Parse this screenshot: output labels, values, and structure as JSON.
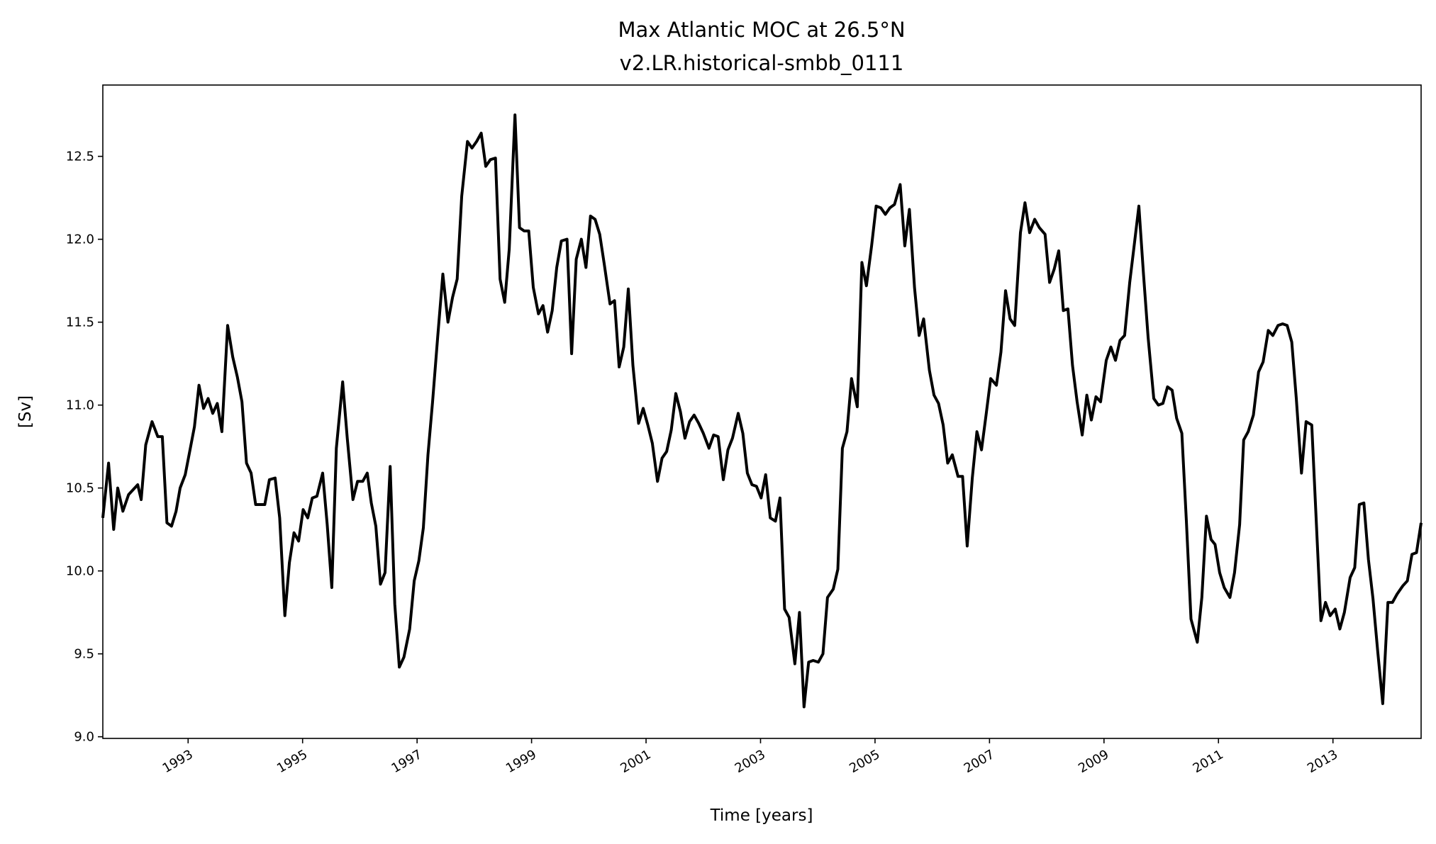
{
  "chart_data": {
    "type": "line",
    "title": "Max Atlantic MOC at 26.5°N",
    "subtitle": "v2.LR.historical-smbb_0111",
    "xlabel": "Time [years]",
    "ylabel": "[Sv]",
    "xlim": [
      1991.51,
      2014.54
    ],
    "ylim": [
      8.99,
      12.93
    ],
    "grid": false,
    "x_ticks": [
      1993,
      1995,
      1997,
      1999,
      2001,
      2003,
      2005,
      2007,
      2009,
      2011,
      2013
    ],
    "x_tick_labels": [
      "1993",
      "1995",
      "1997",
      "1999",
      "2001",
      "2003",
      "2005",
      "2007",
      "2009",
      "2011",
      "2013"
    ],
    "y_ticks": [
      9.0,
      9.5,
      10.0,
      10.5,
      11.0,
      11.5,
      12.0,
      12.5
    ],
    "y_tick_labels": [
      "9.0",
      "9.5",
      "10.0",
      "10.5",
      "11.0",
      "11.5",
      "12.0",
      "12.5"
    ],
    "line_color": "#000000",
    "series": [
      {
        "name": "Max Atlantic MOC",
        "x": [
          1991.51,
          1991.61,
          1991.7,
          1991.77,
          1991.86,
          1991.96,
          1992.12,
          1992.18,
          1992.26,
          1992.37,
          1992.47,
          1992.55,
          1992.63,
          1992.71,
          1992.79,
          1992.86,
          1992.95,
          1993.05,
          1993.11,
          1993.19,
          1993.27,
          1993.35,
          1993.43,
          1993.51,
          1993.59,
          1993.69,
          1993.78,
          1993.86,
          1993.94,
          1994.02,
          1994.1,
          1994.18,
          1994.34,
          1994.42,
          1994.52,
          1994.6,
          1994.69,
          1994.77,
          1994.85,
          1994.93,
          1995.01,
          1995.09,
          1995.17,
          1995.25,
          1995.35,
          1995.43,
          1995.51,
          1995.59,
          1995.7,
          1995.78,
          1995.88,
          1995.96,
          1996.05,
          1996.13,
          1996.2,
          1996.28,
          1996.36,
          1996.44,
          1996.53,
          1996.61,
          1996.69,
          1996.77,
          1996.87,
          1996.95,
          1997.03,
          1997.11,
          1997.19,
          1997.27,
          1997.36,
          1997.45,
          1997.54,
          1997.62,
          1997.7,
          1997.78,
          1997.88,
          1997.96,
          1998.04,
          1998.12,
          1998.2,
          1998.28,
          1998.37,
          1998.45,
          1998.53,
          1998.61,
          1998.71,
          1998.79,
          1998.87,
          1998.95,
          1999.03,
          1999.12,
          1999.2,
          1999.28,
          1999.36,
          1999.44,
          1999.52,
          1999.62,
          1999.7,
          1999.78,
          1999.87,
          1999.95,
          2000.03,
          2000.11,
          2000.19,
          2000.27,
          2000.37,
          2000.45,
          2000.53,
          2000.61,
          2000.69,
          2000.77,
          2000.87,
          2000.95,
          2001.03,
          2001.11,
          2001.2,
          2001.28,
          2001.36,
          2001.44,
          2001.52,
          2001.6,
          2001.68,
          2001.76,
          2001.84,
          2001.92,
          2002.0,
          2002.1,
          2002.18,
          2002.26,
          2002.35,
          2002.43,
          2002.51,
          2002.61,
          2002.69,
          2002.77,
          2002.85,
          2002.93,
          2003.01,
          2003.09,
          2003.17,
          2003.26,
          2003.34,
          2003.42,
          2003.5,
          2003.6,
          2003.68,
          2003.76,
          2003.84,
          2003.92,
          2004.01,
          2004.09,
          2004.17,
          2004.27,
          2004.35,
          2004.43,
          2004.51,
          2004.59,
          2004.69,
          2004.77,
          2004.85,
          2004.94,
          2005.02,
          2005.1,
          2005.18,
          2005.26,
          2005.34,
          2005.44,
          2005.52,
          2005.6,
          2005.69,
          2005.77,
          2005.85,
          2005.95,
          2006.03,
          2006.11,
          2006.19,
          2006.27,
          2006.35,
          2006.45,
          2006.53,
          2006.61,
          2006.7,
          2006.78,
          2006.86,
          2006.94,
          2007.02,
          2007.12,
          2007.2,
          2007.28,
          2007.36,
          2007.44,
          2007.54,
          2007.62,
          2007.7,
          2007.79,
          2007.87,
          2007.97,
          2008.05,
          2008.13,
          2008.21,
          2008.29,
          2008.37,
          2008.45,
          2008.53,
          2008.62,
          2008.7,
          2008.78,
          2008.86,
          2008.94,
          2009.04,
          2009.12,
          2009.2,
          2009.28,
          2009.36,
          2009.45,
          2009.53,
          2009.61,
          2009.69,
          2009.77,
          2009.87,
          2009.95,
          2010.03,
          2010.11,
          2010.19,
          2010.27,
          2010.36,
          2010.44,
          2010.52,
          2010.63,
          2010.71,
          2010.79,
          2010.87,
          2010.94,
          2011.02,
          2011.1,
          2011.2,
          2011.28,
          2011.37,
          2011.44,
          2011.52,
          2011.61,
          2011.7,
          2011.78,
          2011.87,
          2011.95,
          2012.04,
          2012.12,
          2012.2,
          2012.28,
          2012.36,
          2012.45,
          2012.53,
          2012.63,
          2012.7,
          2012.79,
          2012.87,
          2012.95,
          2013.04,
          2013.12,
          2013.2,
          2013.3,
          2013.38,
          2013.46,
          2013.54,
          2013.62,
          2013.7,
          2013.78,
          2013.87,
          2013.96,
          2014.04,
          2014.12,
          2014.22,
          2014.3,
          2014.38,
          2014.46,
          2014.54
        ],
        "y": [
          10.32,
          10.65,
          10.25,
          10.5,
          10.36,
          10.46,
          10.52,
          10.43,
          10.76,
          10.9,
          10.81,
          10.81,
          10.29,
          10.27,
          10.36,
          10.5,
          10.58,
          10.76,
          10.87,
          11.12,
          10.98,
          11.04,
          10.95,
          11.01,
          10.84,
          11.48,
          11.29,
          11.17,
          11.02,
          10.65,
          10.59,
          10.4,
          10.4,
          10.55,
          10.56,
          10.32,
          9.73,
          10.05,
          10.23,
          10.18,
          10.37,
          10.32,
          10.44,
          10.45,
          10.59,
          10.28,
          9.9,
          10.74,
          11.14,
          10.8,
          10.43,
          10.54,
          10.54,
          10.59,
          10.41,
          10.27,
          9.92,
          9.99,
          10.63,
          9.8,
          9.42,
          9.48,
          9.65,
          9.94,
          10.06,
          10.26,
          10.7,
          11.02,
          11.41,
          11.79,
          11.5,
          11.65,
          11.76,
          12.26,
          12.59,
          12.55,
          12.59,
          12.64,
          12.44,
          12.48,
          12.49,
          11.76,
          11.62,
          11.94,
          12.75,
          12.07,
          12.05,
          12.05,
          11.71,
          11.55,
          11.6,
          11.44,
          11.57,
          11.83,
          11.99,
          12.0,
          11.31,
          11.88,
          12.0,
          11.83,
          12.14,
          12.12,
          12.03,
          11.85,
          11.61,
          11.63,
          11.23,
          11.35,
          11.7,
          11.24,
          10.89,
          10.98,
          10.88,
          10.77,
          10.54,
          10.68,
          10.72,
          10.85,
          11.07,
          10.96,
          10.8,
          10.9,
          10.94,
          10.89,
          10.83,
          10.74,
          10.82,
          10.81,
          10.55,
          10.73,
          10.8,
          10.95,
          10.83,
          10.59,
          10.52,
          10.51,
          10.44,
          10.58,
          10.32,
          10.3,
          10.44,
          9.77,
          9.72,
          9.44,
          9.75,
          9.18,
          9.45,
          9.46,
          9.45,
          9.5,
          9.84,
          9.89,
          10.01,
          10.74,
          10.84,
          11.16,
          10.99,
          11.86,
          11.72,
          11.96,
          12.2,
          12.19,
          12.15,
          12.19,
          12.21,
          12.33,
          11.96,
          12.18,
          11.71,
          11.42,
          11.52,
          11.21,
          11.06,
          11.01,
          10.88,
          10.65,
          10.7,
          10.57,
          10.57,
          10.15,
          10.56,
          10.84,
          10.73,
          10.94,
          11.16,
          11.12,
          11.32,
          11.69,
          11.52,
          11.48,
          12.04,
          12.22,
          12.04,
          12.12,
          12.07,
          12.03,
          11.74,
          11.82,
          11.93,
          11.57,
          11.58,
          11.24,
          11.02,
          10.82,
          11.06,
          10.91,
          11.05,
          11.02,
          11.27,
          11.35,
          11.27,
          11.39,
          11.42,
          11.74,
          11.97,
          12.2,
          11.79,
          11.41,
          11.04,
          11.0,
          11.01,
          11.11,
          11.09,
          10.92,
          10.83,
          10.3,
          9.71,
          9.57,
          9.84,
          10.33,
          10.19,
          10.16,
          9.99,
          9.9,
          9.84,
          9.99,
          10.28,
          10.79,
          10.84,
          10.94,
          11.2,
          11.26,
          11.45,
          11.42,
          11.48,
          11.49,
          11.48,
          11.38,
          11.04,
          10.59,
          10.9,
          10.88,
          10.36,
          9.7,
          9.81,
          9.73,
          9.77,
          9.65,
          9.75,
          9.96,
          10.02,
          10.4,
          10.41,
          10.07,
          9.83,
          9.52,
          9.2,
          9.81,
          9.81,
          9.86,
          9.91,
          9.94,
          10.1,
          10.11,
          10.29
        ]
      }
    ]
  }
}
